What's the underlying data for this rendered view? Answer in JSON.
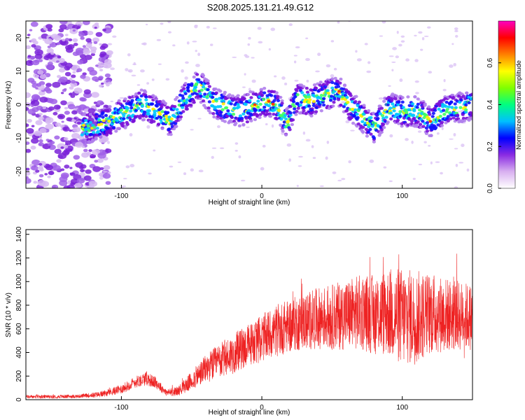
{
  "title": "S208.2025.131.21.49.G12",
  "chart_data": [
    {
      "type": "heatmap",
      "xlabel": "Height of straight line (km)",
      "ylabel": "Frequency (Hz)",
      "xlim": [
        -168,
        150
      ],
      "ylim": [
        -25,
        25
      ],
      "x_ticks": [
        -100,
        0,
        100
      ],
      "y_ticks": [
        -20,
        -10,
        0,
        10,
        20
      ],
      "grid": false,
      "colorbar": {
        "label": "Normalized spectral amplitude",
        "range": [
          0.0,
          0.8
        ],
        "ticks": [
          0.0,
          0.2,
          0.4,
          0.6
        ],
        "colors": [
          "#ffffff",
          "#d8b0f0",
          "#8a2be2",
          "#0000ff",
          "#00c0ff",
          "#00ff80",
          "#80ff00",
          "#ffff00",
          "#ff8000",
          "#ff0000",
          "#ff00c0"
        ]
      },
      "ridge": {
        "x": [
          -125,
          -115,
          -105,
          -95,
          -85,
          -75,
          -65,
          -55,
          -45,
          -35,
          -25,
          -15,
          -5,
          5,
          12,
          18,
          25,
          35,
          45,
          55,
          62,
          70,
          80,
          90,
          100,
          110,
          120,
          130,
          140,
          150
        ],
        "frequency": [
          -7,
          -6,
          -4,
          -2,
          0,
          -2,
          -5,
          2,
          6,
          1,
          -1,
          -2,
          0,
          1,
          -1,
          -6,
          2,
          1,
          3,
          4,
          0,
          -3,
          -7,
          -1,
          -2,
          -2,
          -5,
          -2,
          -1,
          0
        ]
      }
    },
    {
      "type": "line",
      "xlabel": "Height of straight line (km)",
      "ylabel": "SNR (10 * v/v)",
      "xlim": [
        -168,
        150
      ],
      "ylim": [
        0,
        1440
      ],
      "x_ticks": [
        -100,
        0,
        100
      ],
      "y_ticks": [
        0,
        200,
        400,
        600,
        800,
        1000,
        1200,
        1400
      ],
      "grid": false,
      "series": [
        {
          "color": "#ee2222",
          "x": [
            -168,
            -150,
            -130,
            -115,
            -100,
            -90,
            -82,
            -75,
            -68,
            -60,
            -50,
            -40,
            -30,
            -20,
            -10,
            0,
            10,
            20,
            30,
            40,
            50,
            60,
            70,
            80,
            90,
            100,
            110,
            120,
            130,
            140,
            150
          ],
          "mean": [
            25,
            25,
            30,
            45,
            90,
            150,
            180,
            140,
            60,
            70,
            160,
            260,
            330,
            390,
            460,
            520,
            580,
            630,
            660,
            690,
            700,
            720,
            740,
            720,
            740,
            700,
            700,
            730,
            720,
            710,
            700
          ],
          "spread": [
            15,
            15,
            15,
            25,
            40,
            50,
            60,
            50,
            30,
            40,
            80,
            120,
            150,
            170,
            180,
            200,
            220,
            230,
            240,
            260,
            280,
            300,
            320,
            340,
            380,
            420,
            400,
            350,
            320,
            300,
            280
          ]
        }
      ]
    }
  ]
}
